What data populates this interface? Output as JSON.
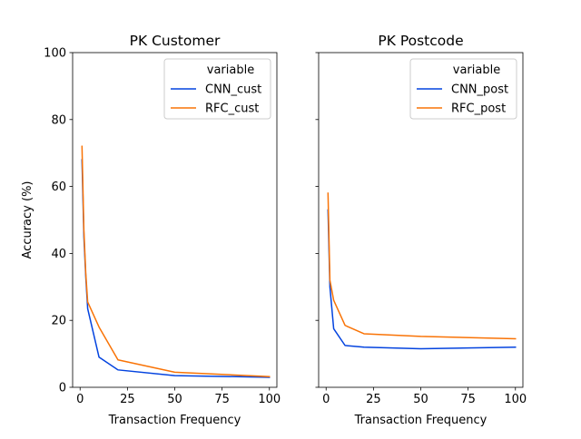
{
  "chart_data": [
    {
      "type": "line",
      "title": "PK Customer",
      "xlabel": "Transaction Frequency",
      "ylabel": "Accuracy (%)",
      "xlim": [
        -3.95,
        103.95
      ],
      "ylim": [
        0,
        100
      ],
      "xticks": [
        0,
        25,
        50,
        75,
        100
      ],
      "yticks": [
        0,
        20,
        40,
        60,
        80,
        100
      ],
      "xtick_labels": [
        "0",
        "25",
        "50",
        "75",
        "100"
      ],
      "ytick_labels": [
        "0",
        "20",
        "40",
        "60",
        "80",
        "100"
      ],
      "show_yticklabels": true,
      "grid": false,
      "legend": {
        "title": "variable",
        "placement": "top-right"
      },
      "series": [
        {
          "name": "CNN_cust",
          "color": "#0343df",
          "x": [
            1,
            2,
            3,
            4,
            10,
            20,
            50,
            100
          ],
          "y": [
            68,
            45,
            33,
            23.5,
            9,
            5.2,
            3.5,
            3.0
          ]
        },
        {
          "name": "RFC_cust",
          "color": "#f97306",
          "x": [
            1,
            2,
            3,
            4,
            10,
            20,
            50,
            100
          ],
          "y": [
            72,
            47,
            34,
            25.5,
            18,
            8.2,
            4.5,
            3.2
          ]
        }
      ]
    },
    {
      "type": "line",
      "title": "PK Postcode",
      "xlabel": "Transaction Frequency",
      "ylabel": "",
      "xlim": [
        -3.95,
        103.95
      ],
      "ylim": [
        0,
        100
      ],
      "xticks": [
        0,
        25,
        50,
        75,
        100
      ],
      "yticks": [
        0,
        20,
        40,
        60,
        80,
        100
      ],
      "xtick_labels": [
        "0",
        "25",
        "50",
        "75",
        "100"
      ],
      "ytick_labels": [
        "0",
        "20",
        "40",
        "60",
        "80",
        "100"
      ],
      "show_yticklabels": false,
      "grid": false,
      "legend": {
        "title": "variable",
        "placement": "top-right"
      },
      "series": [
        {
          "name": "CNN_post",
          "color": "#0343df",
          "x": [
            1,
            2,
            4,
            10,
            20,
            50,
            100
          ],
          "y": [
            53,
            30,
            17.5,
            12.5,
            12,
            11.5,
            12
          ]
        },
        {
          "name": "RFC_post",
          "color": "#f97306",
          "x": [
            1,
            2,
            4,
            10,
            20,
            50,
            100
          ],
          "y": [
            58,
            32,
            26,
            18.5,
            16,
            15.2,
            14.5
          ]
        }
      ]
    }
  ]
}
